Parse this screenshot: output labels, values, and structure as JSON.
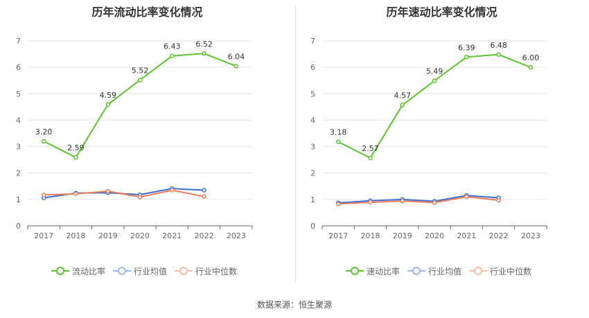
{
  "chart_data": [
    {
      "type": "line",
      "title": "历年流动比率变化情况",
      "categories": [
        "2017",
        "2018",
        "2019",
        "2020",
        "2021",
        "2022",
        "2023"
      ],
      "yticks": [
        "0",
        "1",
        "2",
        "3",
        "4",
        "5",
        "6",
        "7"
      ],
      "ylim": [
        0,
        7
      ],
      "grid": true,
      "legend_position": "bottom",
      "series": [
        {
          "name": "流动比率",
          "color": "#5cc42e",
          "values": [
            3.2,
            2.59,
            4.59,
            5.52,
            6.43,
            6.52,
            6.04
          ],
          "labels": [
            "3.20",
            "2.59",
            "4.59",
            "5.52",
            "6.43",
            "6.52",
            "6.04"
          ]
        },
        {
          "name": "行业均值",
          "color": "#3a6fd8",
          "values": [
            1.06,
            1.24,
            1.25,
            1.18,
            1.41,
            1.35,
            null
          ]
        },
        {
          "name": "行业中位数",
          "color": "#f07c5a",
          "values": [
            1.17,
            1.21,
            1.31,
            1.09,
            1.35,
            1.11,
            null
          ]
        }
      ]
    },
    {
      "type": "line",
      "title": "历年速动比率变化情况",
      "categories": [
        "2017",
        "2018",
        "2019",
        "2020",
        "2021",
        "2022",
        "2023"
      ],
      "yticks": [
        "0",
        "1",
        "2",
        "3",
        "4",
        "5",
        "6",
        "7"
      ],
      "ylim": [
        0,
        7
      ],
      "grid": true,
      "legend_position": "bottom",
      "series": [
        {
          "name": "速动比率",
          "color": "#5cc42e",
          "values": [
            3.18,
            2.57,
            4.57,
            5.49,
            6.39,
            6.48,
            6.0
          ],
          "labels": [
            "3.18",
            "2.57",
            "4.57",
            "5.49",
            "6.39",
            "6.48",
            "6.00"
          ]
        },
        {
          "name": "行业均值",
          "color": "#3a6fd8",
          "values": [
            0.87,
            0.95,
            1.0,
            0.93,
            1.15,
            1.06,
            null
          ]
        },
        {
          "name": "行业中位数",
          "color": "#f07c5a",
          "values": [
            0.83,
            0.89,
            0.94,
            0.88,
            1.1,
            0.97,
            null
          ]
        }
      ]
    }
  ],
  "legend_colors": {
    "main": "#5cc42e",
    "avg_faded": "#9bb9ef",
    "median_faded": "#f7bfab"
  },
  "footer": {
    "source": "数据来源：恒生聚源"
  }
}
